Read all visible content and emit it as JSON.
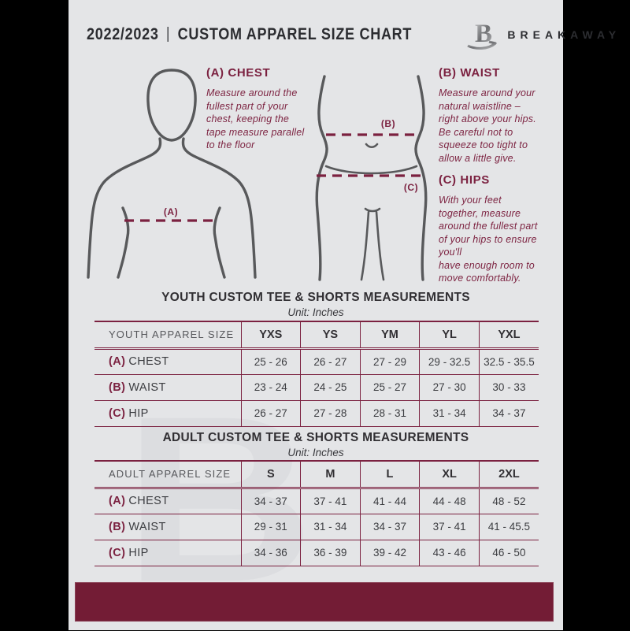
{
  "colors": {
    "frame": "#000000",
    "page_background": "#e4e5e7",
    "accent_maroon": "#7b2140",
    "footer_maroon": "#731c35",
    "dark_text": "#312f33",
    "figure_gray": "#58595b"
  },
  "header": {
    "season": "2022/2023",
    "separator": "|",
    "title": "CUSTOM APPAREL SIZE CHART",
    "brand": "BREAKAWAY",
    "logo_letter": "B"
  },
  "guide": {
    "chest": {
      "heading": "(A) CHEST",
      "marker": "(A)",
      "body": "Measure around the\nfullest part of your\nchest, keeping the\ntape measure parallel\nto the floor"
    },
    "waist": {
      "heading": "(B) WAIST",
      "marker": "(B)",
      "body": "Measure around your\nnatural waistline –\nright above your hips.\nBe careful not to\nsqueeze too tight to\nallow a little give."
    },
    "hips": {
      "heading": "(C) HIPS",
      "marker": "(C)",
      "body": "With your feet\ntogether, measure\naround the fullest part\nof your hips to ensure\nyou'll\nhave enough room to\nmove comfortably."
    }
  },
  "youth_table": {
    "title": "YOUTH CUSTOM TEE & SHORTS MEASUREMENTS",
    "subtitle": "Unit: Inches",
    "header": [
      "YOUTH APPAREL SIZE",
      "YXS",
      "YS",
      "YM",
      "YL",
      "YXL"
    ],
    "rows": [
      {
        "prefix": "(A)",
        "label": "CHEST",
        "values": [
          "25 - 26",
          "26 - 27",
          "27 - 29",
          "29 - 32.5",
          "32.5 - 35.5"
        ]
      },
      {
        "prefix": "(B)",
        "label": "WAIST",
        "values": [
          "23 - 24",
          "24 - 25",
          "25 - 27",
          "27 - 30",
          "30 - 33"
        ]
      },
      {
        "prefix": "(C)",
        "label": "HIP",
        "values": [
          "26 - 27",
          "27 - 28",
          "28 - 31",
          "31 - 34",
          "34 - 37"
        ]
      }
    ]
  },
  "adult_table": {
    "title": "ADULT CUSTOM TEE & SHORTS MEASUREMENTS",
    "subtitle": "Unit: Inches",
    "header": [
      "ADULT APPAREL SIZE",
      "S",
      "M",
      "L",
      "XL",
      "2XL"
    ],
    "rows": [
      {
        "prefix": "(A)",
        "label": "CHEST",
        "values": [
          "34 - 37",
          "37 - 41",
          "41 - 44",
          "44 - 48",
          "48 - 52"
        ]
      },
      {
        "prefix": "(B)",
        "label": "WAIST",
        "values": [
          "29 - 31",
          "31 - 34",
          "34 - 37",
          "37 - 41",
          "41 - 45.5"
        ]
      },
      {
        "prefix": "(C)",
        "label": "HIP",
        "values": [
          "34 - 36",
          "36 - 39",
          "39 - 42",
          "43 - 46",
          "46 - 50"
        ]
      }
    ]
  }
}
